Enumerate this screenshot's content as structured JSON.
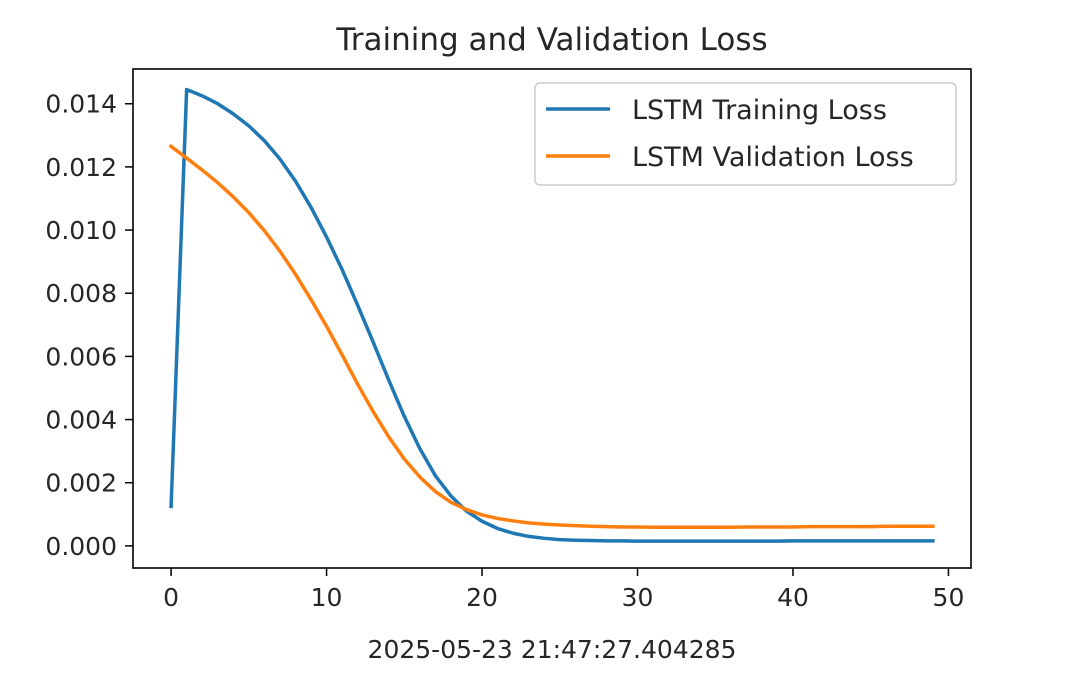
{
  "chart_data": {
    "type": "line",
    "title": "Training and Validation Loss",
    "xlabel": "2025-05-23 21:47:27.404285",
    "ylabel": "",
    "xlim": [
      -2.45,
      51.45
    ],
    "ylim": [
      -0.0007,
      0.0151
    ],
    "xticks": [
      0,
      10,
      20,
      30,
      40,
      50
    ],
    "yticks": [
      0.0,
      0.002,
      0.004,
      0.006,
      0.008,
      0.01,
      0.012,
      0.014
    ],
    "xtick_labels": [
      "0",
      "10",
      "20",
      "30",
      "40",
      "50"
    ],
    "ytick_labels": [
      "0.000",
      "0.002",
      "0.004",
      "0.006",
      "0.008",
      "0.010",
      "0.012",
      "0.014"
    ],
    "legend_position": "top-right",
    "x": [
      0,
      1,
      2,
      3,
      4,
      5,
      6,
      7,
      8,
      9,
      10,
      11,
      12,
      13,
      14,
      15,
      16,
      17,
      18,
      19,
      20,
      21,
      22,
      23,
      24,
      25,
      26,
      27,
      28,
      29,
      30,
      31,
      32,
      33,
      34,
      35,
      36,
      37,
      38,
      39,
      40,
      41,
      42,
      43,
      44,
      45,
      46,
      47,
      48,
      49
    ],
    "series": [
      {
        "name": "LSTM Training Loss",
        "color": "#1f77b4",
        "values": [
          0.00125,
          0.01445,
          0.01425,
          0.014,
          0.01368,
          0.0133,
          0.01283,
          0.01225,
          0.01155,
          0.01072,
          0.00978,
          0.00875,
          0.00762,
          0.00645,
          0.00525,
          0.0041,
          0.00308,
          0.00222,
          0.00158,
          0.0011,
          0.00078,
          0.00055,
          0.0004,
          0.0003,
          0.00024,
          0.0002,
          0.00018,
          0.00017,
          0.00016,
          0.00016,
          0.00015,
          0.00015,
          0.00015,
          0.00015,
          0.00015,
          0.00015,
          0.00015,
          0.00015,
          0.00015,
          0.00015,
          0.00016,
          0.00016,
          0.00016,
          0.00016,
          0.00016,
          0.00016,
          0.00016,
          0.00016,
          0.00016,
          0.00016
        ]
      },
      {
        "name": "LSTM Validation Loss",
        "color": "#ff7f0e",
        "values": [
          0.01265,
          0.01228,
          0.0119,
          0.0115,
          0.01105,
          0.01055,
          0.00998,
          0.00933,
          0.0086,
          0.0078,
          0.00695,
          0.00605,
          0.00512,
          0.00425,
          0.00345,
          0.00275,
          0.00218,
          0.00172,
          0.00138,
          0.00115,
          0.00098,
          0.00087,
          0.00079,
          0.00073,
          0.00069,
          0.00066,
          0.00064,
          0.00062,
          0.00061,
          0.0006,
          0.0006,
          0.00059,
          0.00059,
          0.00059,
          0.00059,
          0.00059,
          0.00059,
          0.0006,
          0.0006,
          0.0006,
          0.0006,
          0.00061,
          0.00061,
          0.00061,
          0.00061,
          0.00061,
          0.00062,
          0.00062,
          0.00062,
          0.00062
        ]
      }
    ]
  }
}
